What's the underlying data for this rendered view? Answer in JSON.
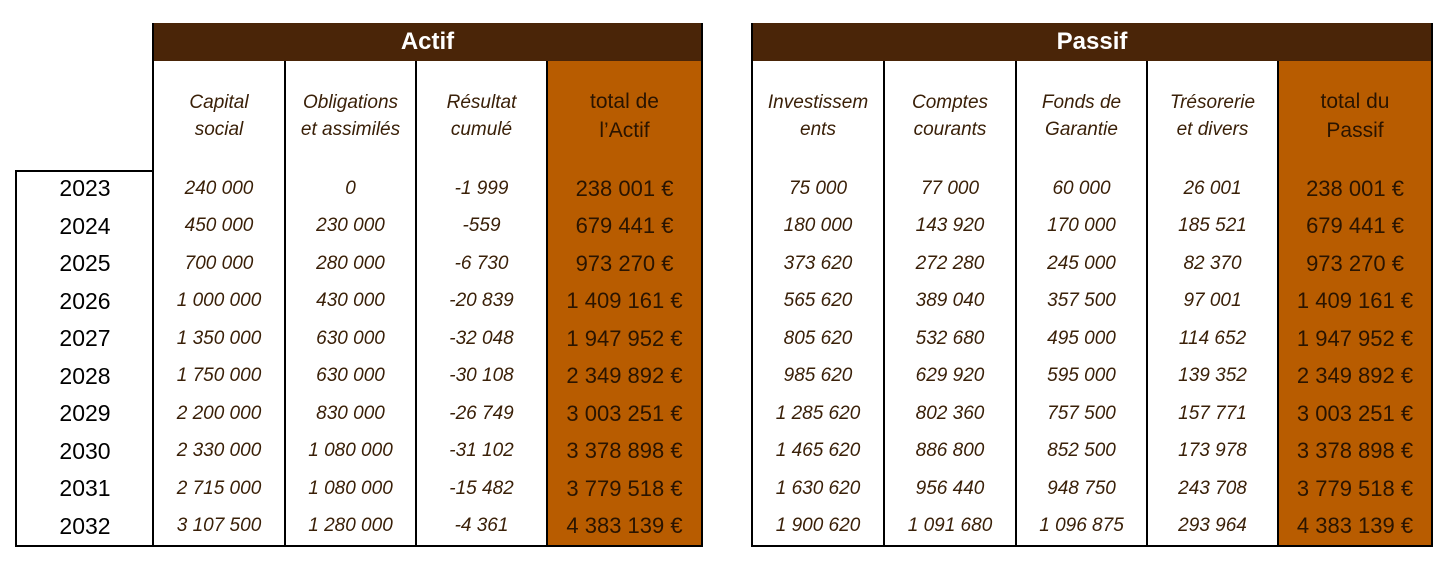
{
  "actif": {
    "title": "Actif",
    "columns": [
      "Capital social",
      "Obligations et assimilés",
      "Résultat cumulé",
      "total de l’Actif"
    ],
    "column_lines": [
      [
        "Capital",
        "social"
      ],
      [
        "Obligations",
        "et assimilés"
      ],
      [
        "Résultat",
        "cumulé"
      ],
      [
        "total de",
        "l’Actif"
      ]
    ],
    "rows": [
      [
        "240 000",
        "0",
        "-1 999",
        "238 001 €"
      ],
      [
        "450 000",
        "230 000",
        "-559",
        "679 441 €"
      ],
      [
        "700 000",
        "280 000",
        "-6 730",
        "973 270 €"
      ],
      [
        "1 000 000",
        "430 000",
        "-20 839",
        "1 409 161 €"
      ],
      [
        "1 350 000",
        "630 000",
        "-32 048",
        "1 947 952 €"
      ],
      [
        "1 750 000",
        "630 000",
        "-30 108",
        "2 349 892 €"
      ],
      [
        "2 200 000",
        "830 000",
        "-26 749",
        "3 003 251 €"
      ],
      [
        "2 330 000",
        "1 080 000",
        "-31 102",
        "3 378 898 €"
      ],
      [
        "2 715 000",
        "1 080 000",
        "-15 482",
        "3 779 518 €"
      ],
      [
        "3 107 500",
        "1 280 000",
        "-4 361",
        "4 383 139 €"
      ]
    ]
  },
  "passif": {
    "title": "Passif",
    "columns": [
      "Investissements",
      "Comptes courants",
      "Fonds de Garantie",
      "Trésorerie et divers",
      "total du Passif"
    ],
    "column_lines": [
      [
        "Investissem",
        "ents"
      ],
      [
        "Comptes",
        "courants"
      ],
      [
        "Fonds de",
        "Garantie"
      ],
      [
        "Trésorerie",
        "et divers"
      ],
      [
        "total du",
        "Passif"
      ]
    ],
    "rows": [
      [
        "75 000",
        "77 000",
        "60 000",
        "26 001",
        "238 001 €"
      ],
      [
        "180 000",
        "143 920",
        "170 000",
        "185 521",
        "679 441 €"
      ],
      [
        "373 620",
        "272 280",
        "245 000",
        "82 370",
        "973 270 €"
      ],
      [
        "565 620",
        "389 040",
        "357 500",
        "97 001",
        "1 409 161 €"
      ],
      [
        "805 620",
        "532 680",
        "495 000",
        "114 652",
        "1 947 952 €"
      ],
      [
        "985 620",
        "629 920",
        "595 000",
        "139 352",
        "2 349 892 €"
      ],
      [
        "1 285 620",
        "802 360",
        "757 500",
        "157 771",
        "3 003 251 €"
      ],
      [
        "1 465 620",
        "886 800",
        "852 500",
        "173 978",
        "3 378 898 €"
      ],
      [
        "1 630 620",
        "956 440",
        "948 750",
        "243 708",
        "3 779 518 €"
      ],
      [
        "1 900 620",
        "1 091 680",
        "1 096 875",
        "293 964",
        "4 383 139 €"
      ]
    ]
  },
  "years": [
    "2023",
    "2024",
    "2025",
    "2026",
    "2027",
    "2028",
    "2029",
    "2030",
    "2031",
    "2032"
  ],
  "colors": {
    "header_bg": "#4a2508",
    "header_text": "#ffffff",
    "total_bg": "#b85c00",
    "text": "#3a2008"
  }
}
